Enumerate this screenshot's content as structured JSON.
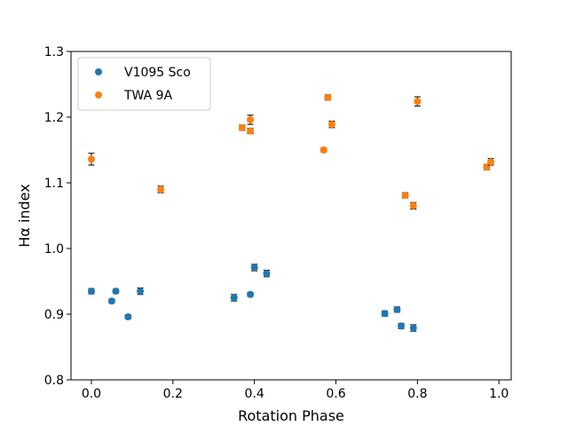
{
  "chart_data": {
    "type": "scatter",
    "title": "",
    "xlabel": "Rotation Phase",
    "ylabel": "Hα index",
    "xlim": [
      -0.05,
      1.03
    ],
    "ylim": [
      0.8,
      1.3
    ],
    "x_ticks": [
      0.0,
      0.2,
      0.4,
      0.6,
      0.8,
      1.0
    ],
    "x_tick_labels": [
      "0.0",
      "0.2",
      "0.4",
      "0.6",
      "0.8",
      "1.0"
    ],
    "y_ticks": [
      0.8,
      0.9,
      1.0,
      1.1,
      1.2,
      1.3
    ],
    "y_tick_labels": [
      "0.8",
      "0.9",
      "1.0",
      "1.1",
      "1.2",
      "1.3"
    ],
    "grid": false,
    "legend_position": "top-left",
    "series": [
      {
        "name": "V1095 Sco",
        "color": "#1f77b4",
        "points": [
          {
            "x": 0.0,
            "y": 0.935,
            "err": 0.004
          },
          {
            "x": 0.05,
            "y": 0.92,
            "err": 0.003
          },
          {
            "x": 0.06,
            "y": 0.935,
            "err": 0.003
          },
          {
            "x": 0.09,
            "y": 0.896,
            "err": 0.003
          },
          {
            "x": 0.12,
            "y": 0.935,
            "err": 0.005
          },
          {
            "x": 0.35,
            "y": 0.925,
            "err": 0.005
          },
          {
            "x": 0.39,
            "y": 0.93,
            "err": 0.003
          },
          {
            "x": 0.4,
            "y": 0.971,
            "err": 0.005
          },
          {
            "x": 0.43,
            "y": 0.962,
            "err": 0.005
          },
          {
            "x": 0.72,
            "y": 0.901,
            "err": 0.004
          },
          {
            "x": 0.75,
            "y": 0.907,
            "err": 0.004
          },
          {
            "x": 0.76,
            "y": 0.882,
            "err": 0.004
          },
          {
            "x": 0.79,
            "y": 0.879,
            "err": 0.005
          }
        ]
      },
      {
        "name": "TWA 9A",
        "color": "#ff7f0e",
        "points": [
          {
            "x": 0.0,
            "y": 1.136,
            "err": 0.009
          },
          {
            "x": 0.17,
            "y": 1.09,
            "err": 0.005
          },
          {
            "x": 0.37,
            "y": 1.184,
            "err": 0.004
          },
          {
            "x": 0.39,
            "y": 1.196,
            "err": 0.007
          },
          {
            "x": 0.39,
            "y": 1.179,
            "err": 0.004
          },
          {
            "x": 0.57,
            "y": 1.15,
            "err": 0.003
          },
          {
            "x": 0.58,
            "y": 1.23,
            "err": 0.004
          },
          {
            "x": 0.59,
            "y": 1.189,
            "err": 0.005
          },
          {
            "x": 0.77,
            "y": 1.081,
            "err": 0.004
          },
          {
            "x": 0.79,
            "y": 1.065,
            "err": 0.005
          },
          {
            "x": 0.8,
            "y": 1.224,
            "err": 0.007
          },
          {
            "x": 0.97,
            "y": 1.124,
            "err": 0.004
          },
          {
            "x": 0.98,
            "y": 1.132,
            "err": 0.005
          }
        ]
      }
    ]
  }
}
